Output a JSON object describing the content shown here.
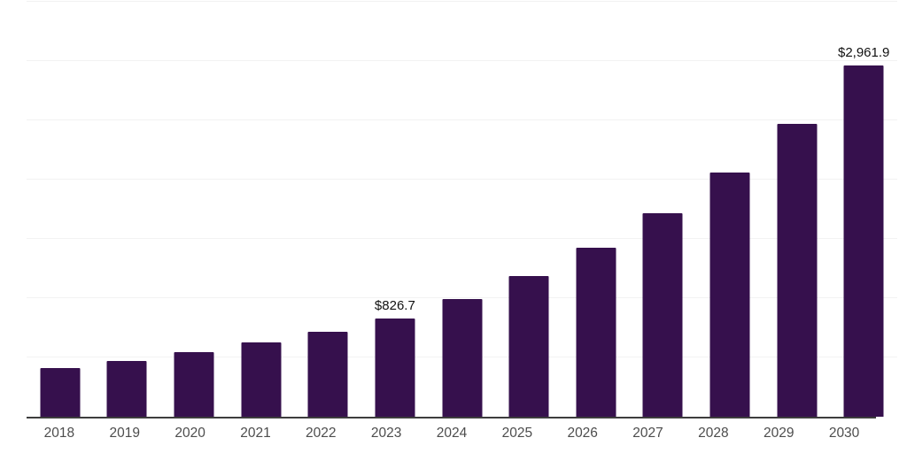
{
  "chart_data": {
    "type": "bar",
    "title": "",
    "xlabel": "",
    "ylabel": "",
    "categories": [
      "2018",
      "2019",
      "2020",
      "2021",
      "2022",
      "2023",
      "2024",
      "2025",
      "2026",
      "2027",
      "2028",
      "2029",
      "2030"
    ],
    "values": [
      411.0,
      472.7,
      543.6,
      625.1,
      718.9,
      826.7,
      992.0,
      1190.4,
      1428.5,
      1714.2,
      2057.1,
      2468.5,
      2961.9
    ],
    "value_labels": {
      "2023": "$826.7",
      "2030": "$2,961.9"
    },
    "ylim": [
      0,
      3500
    ],
    "grid_step": 500,
    "grid": true,
    "legend": false,
    "y_axis_tick_labels_visible": false,
    "colors": {
      "bar": "#36104d",
      "gridline": "#f2f2f2",
      "axis_line": "#3d3d3d",
      "tick_label": "#4d4d4d",
      "data_label": "#111111",
      "background": "#ffffff"
    }
  }
}
